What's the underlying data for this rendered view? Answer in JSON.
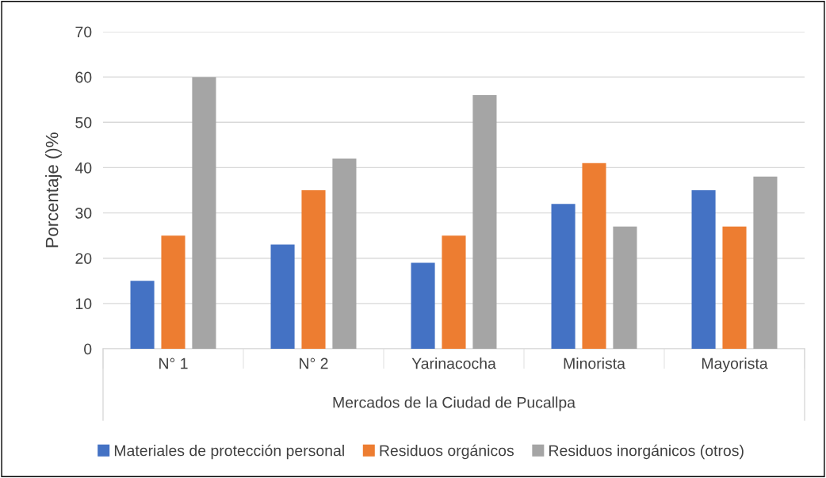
{
  "chart_data": {
    "type": "bar",
    "xlabel": "Mercados de la Ciudad de Pucallpa",
    "ylabel": "Porcentaje ()%",
    "categories": [
      "N° 1",
      "N° 2",
      "Yarinacocha",
      "Minorista",
      "Mayorista"
    ],
    "series": [
      {
        "name": "Materiales de protección personal",
        "color": "#4472c4",
        "values": [
          15,
          23,
          19,
          32,
          35
        ]
      },
      {
        "name": "Residuos orgánicos",
        "color": "#ed7d31",
        "values": [
          25,
          35,
          25,
          41,
          27
        ]
      },
      {
        "name": "Residuos inorgánicos (otros)",
        "color": "#a5a5a5",
        "values": [
          60,
          42,
          56,
          27,
          38
        ]
      }
    ],
    "ylim": [
      0,
      70
    ],
    "yticks": [
      0,
      10,
      20,
      30,
      40,
      50,
      60,
      70
    ],
    "grid": "y",
    "legend": "bottom"
  }
}
